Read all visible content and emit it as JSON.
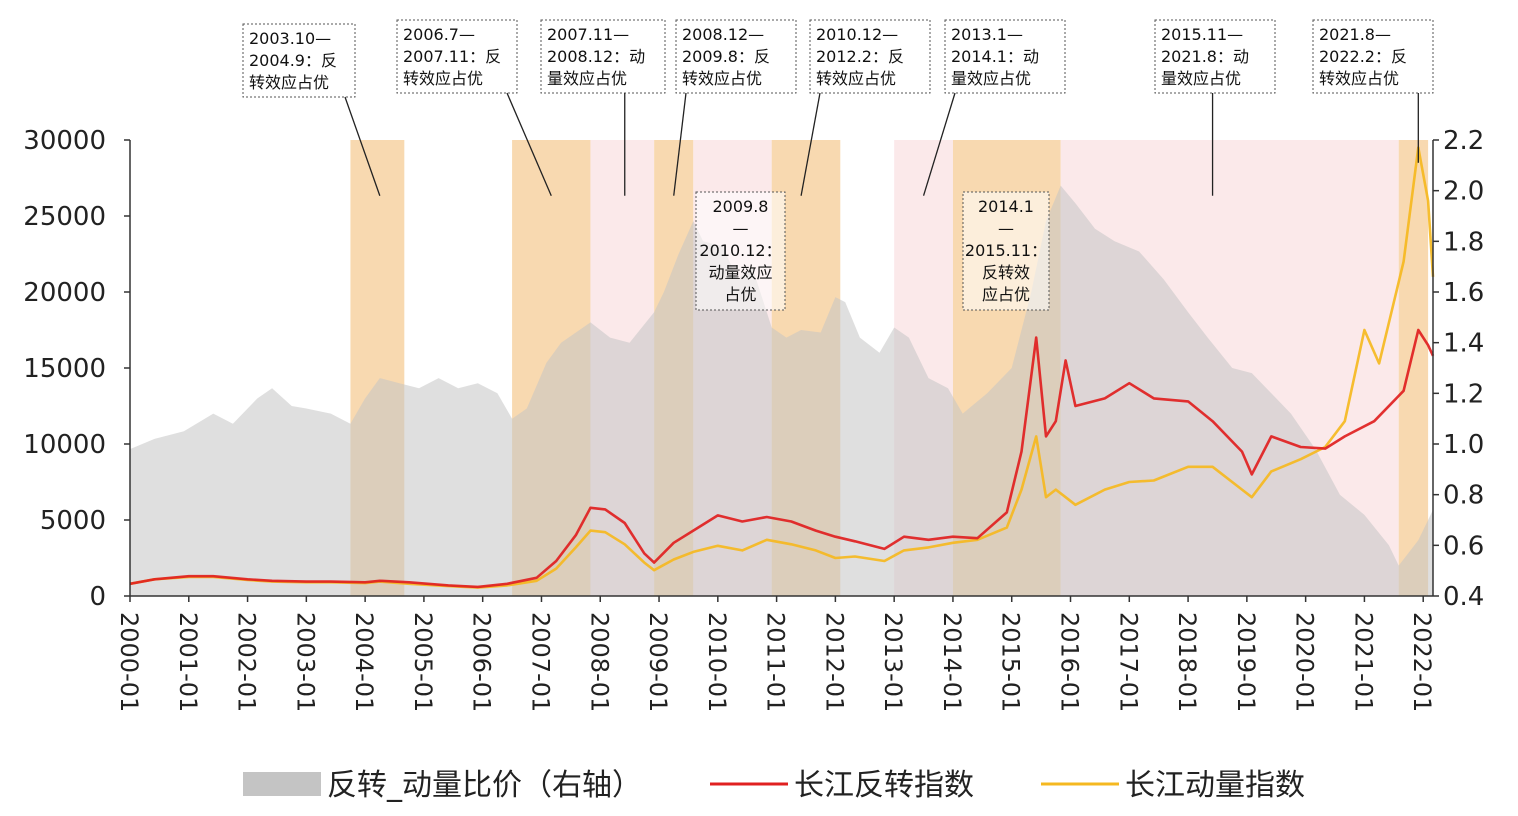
{
  "chart_data": {
    "type": "area+line",
    "title": "",
    "x_range": [
      "2000-01",
      "2022-03"
    ],
    "x_ticks": [
      "2000-01",
      "2001-01",
      "2002-01",
      "2003-01",
      "2004-01",
      "2005-01",
      "2006-01",
      "2007-01",
      "2008-01",
      "2009-01",
      "2010-01",
      "2011-01",
      "2012-01",
      "2013-01",
      "2014-01",
      "2015-01",
      "2016-01",
      "2017-01",
      "2018-01",
      "2019-01",
      "2020-01",
      "2021-01",
      "2022-01"
    ],
    "y_left": {
      "range": [
        0,
        30000
      ],
      "ticks": [
        "0",
        "5000",
        "10000",
        "15000",
        "20000",
        "25000",
        "30000"
      ]
    },
    "y_right": {
      "range": [
        0.4,
        2.2
      ],
      "ticks": [
        "0.4",
        "0.6",
        "0.8",
        "1.0",
        "1.2",
        "1.4",
        "1.6",
        "1.8",
        "2.0",
        "2.2"
      ]
    },
    "legend_position": "bottom",
    "colors": {
      "ratio_area": "#c4c4c4",
      "reversal_line": "#e02020",
      "momentum_line": "#f5b820",
      "reversal_band": "#f8d9b0",
      "momentum_band": "#fbe9ea"
    },
    "series": [
      {
        "name": "反转_动量比价（右轴）",
        "axis": "right",
        "kind": "area",
        "points": [
          [
            "2000-01",
            0.98
          ],
          [
            "2000-06",
            1.02
          ],
          [
            "2000-12",
            1.05
          ],
          [
            "2001-06",
            1.12
          ],
          [
            "2001-10",
            1.08
          ],
          [
            "2002-03",
            1.18
          ],
          [
            "2002-06",
            1.22
          ],
          [
            "2002-10",
            1.15
          ],
          [
            "2003-01",
            1.14
          ],
          [
            "2003-06",
            1.12
          ],
          [
            "2003-10",
            1.08
          ],
          [
            "2004-01",
            1.18
          ],
          [
            "2004-04",
            1.26
          ],
          [
            "2004-08",
            1.24
          ],
          [
            "2004-12",
            1.22
          ],
          [
            "2005-04",
            1.26
          ],
          [
            "2005-08",
            1.22
          ],
          [
            "2005-12",
            1.24
          ],
          [
            "2006-04",
            1.2
          ],
          [
            "2006-07",
            1.1
          ],
          [
            "2006-10",
            1.14
          ],
          [
            "2007-02",
            1.32
          ],
          [
            "2007-05",
            1.4
          ],
          [
            "2007-11",
            1.48
          ],
          [
            "2008-03",
            1.42
          ],
          [
            "2008-07",
            1.4
          ],
          [
            "2008-12",
            1.52
          ],
          [
            "2009-02",
            1.6
          ],
          [
            "2009-05",
            1.75
          ],
          [
            "2009-08",
            1.88
          ],
          [
            "2009-10",
            1.8
          ],
          [
            "2010-02",
            1.78
          ],
          [
            "2010-05",
            1.65
          ],
          [
            "2010-08",
            1.7
          ],
          [
            "2010-12",
            1.46
          ],
          [
            "2011-03",
            1.42
          ],
          [
            "2011-06",
            1.45
          ],
          [
            "2011-10",
            1.44
          ],
          [
            "2012-01",
            1.58
          ],
          [
            "2012-03",
            1.56
          ],
          [
            "2012-06",
            1.42
          ],
          [
            "2012-10",
            1.36
          ],
          [
            "2013-01",
            1.46
          ],
          [
            "2013-04",
            1.42
          ],
          [
            "2013-08",
            1.26
          ],
          [
            "2013-12",
            1.22
          ],
          [
            "2014-03",
            1.12
          ],
          [
            "2014-08",
            1.2
          ],
          [
            "2015-01",
            1.3
          ],
          [
            "2015-05",
            1.6
          ],
          [
            "2015-08",
            1.88
          ],
          [
            "2015-11",
            2.02
          ],
          [
            "2016-02",
            1.95
          ],
          [
            "2016-06",
            1.85
          ],
          [
            "2016-10",
            1.8
          ],
          [
            "2017-03",
            1.76
          ],
          [
            "2017-08",
            1.65
          ],
          [
            "2018-01",
            1.52
          ],
          [
            "2018-05",
            1.42
          ],
          [
            "2018-10",
            1.3
          ],
          [
            "2019-02",
            1.28
          ],
          [
            "2019-06",
            1.2
          ],
          [
            "2019-10",
            1.12
          ],
          [
            "2020-03",
            0.98
          ],
          [
            "2020-08",
            0.8
          ],
          [
            "2021-01",
            0.72
          ],
          [
            "2021-06",
            0.6
          ],
          [
            "2021-08",
            0.52
          ],
          [
            "2021-12",
            0.62
          ],
          [
            "2022-02",
            0.7
          ],
          [
            "2022-03",
            0.74
          ]
        ]
      },
      {
        "name": "长江反转指数",
        "axis": "left",
        "kind": "line",
        "points": [
          [
            "2000-01",
            800
          ],
          [
            "2000-06",
            1100
          ],
          [
            "2001-01",
            1300
          ],
          [
            "2001-06",
            1300
          ],
          [
            "2002-01",
            1100
          ],
          [
            "2002-06",
            1000
          ],
          [
            "2003-01",
            950
          ],
          [
            "2003-06",
            950
          ],
          [
            "2004-01",
            900
          ],
          [
            "2004-04",
            1000
          ],
          [
            "2004-10",
            900
          ],
          [
            "2005-06",
            700
          ],
          [
            "2005-12",
            600
          ],
          [
            "2006-06",
            800
          ],
          [
            "2006-12",
            1200
          ],
          [
            "2007-04",
            2300
          ],
          [
            "2007-08",
            4000
          ],
          [
            "2007-11",
            5800
          ],
          [
            "2008-02",
            5700
          ],
          [
            "2008-06",
            4800
          ],
          [
            "2008-10",
            2800
          ],
          [
            "2008-12",
            2200
          ],
          [
            "2009-04",
            3500
          ],
          [
            "2009-08",
            4300
          ],
          [
            "2010-01",
            5300
          ],
          [
            "2010-06",
            4900
          ],
          [
            "2010-11",
            5200
          ],
          [
            "2011-04",
            4900
          ],
          [
            "2011-09",
            4300
          ],
          [
            "2012-01",
            3900
          ],
          [
            "2012-05",
            3600
          ],
          [
            "2012-11",
            3100
          ],
          [
            "2013-03",
            3900
          ],
          [
            "2013-08",
            3700
          ],
          [
            "2014-01",
            3900
          ],
          [
            "2014-06",
            3800
          ],
          [
            "2014-12",
            5500
          ],
          [
            "2015-03",
            9500
          ],
          [
            "2015-06",
            17000
          ],
          [
            "2015-08",
            10500
          ],
          [
            "2015-10",
            11500
          ],
          [
            "2015-12",
            15500
          ],
          [
            "2016-02",
            12500
          ],
          [
            "2016-08",
            13000
          ],
          [
            "2017-01",
            14000
          ],
          [
            "2017-06",
            13000
          ],
          [
            "2018-01",
            12800
          ],
          [
            "2018-06",
            11500
          ],
          [
            "2018-12",
            9500
          ],
          [
            "2019-02",
            8000
          ],
          [
            "2019-06",
            10500
          ],
          [
            "2019-12",
            9800
          ],
          [
            "2020-05",
            9700
          ],
          [
            "2020-09",
            10500
          ],
          [
            "2021-03",
            11500
          ],
          [
            "2021-09",
            13500
          ],
          [
            "2021-12",
            17500
          ],
          [
            "2022-02",
            16500
          ],
          [
            "2022-03",
            15800
          ]
        ]
      },
      {
        "name": "长江动量指数",
        "axis": "left",
        "kind": "line",
        "points": [
          [
            "2000-01",
            800
          ],
          [
            "2000-06",
            1100
          ],
          [
            "2001-01",
            1250
          ],
          [
            "2001-06",
            1250
          ],
          [
            "2002-01",
            1050
          ],
          [
            "2002-06",
            950
          ],
          [
            "2003-01",
            900
          ],
          [
            "2003-06",
            900
          ],
          [
            "2004-01",
            850
          ],
          [
            "2004-04",
            950
          ],
          [
            "2004-10",
            800
          ],
          [
            "2005-06",
            650
          ],
          [
            "2005-12",
            550
          ],
          [
            "2006-06",
            700
          ],
          [
            "2006-12",
            1000
          ],
          [
            "2007-04",
            1800
          ],
          [
            "2007-08",
            3200
          ],
          [
            "2007-11",
            4300
          ],
          [
            "2008-02",
            4200
          ],
          [
            "2008-06",
            3400
          ],
          [
            "2008-10",
            2200
          ],
          [
            "2008-12",
            1700
          ],
          [
            "2009-04",
            2400
          ],
          [
            "2009-08",
            2900
          ],
          [
            "2010-01",
            3300
          ],
          [
            "2010-06",
            3000
          ],
          [
            "2010-11",
            3700
          ],
          [
            "2011-04",
            3400
          ],
          [
            "2011-09",
            3000
          ],
          [
            "2012-01",
            2500
          ],
          [
            "2012-05",
            2600
          ],
          [
            "2012-11",
            2300
          ],
          [
            "2013-03",
            3000
          ],
          [
            "2013-08",
            3200
          ],
          [
            "2014-01",
            3500
          ],
          [
            "2014-06",
            3700
          ],
          [
            "2014-12",
            4500
          ],
          [
            "2015-03",
            7000
          ],
          [
            "2015-06",
            10500
          ],
          [
            "2015-08",
            6500
          ],
          [
            "2015-10",
            7000
          ],
          [
            "2015-12",
            6500
          ],
          [
            "2016-02",
            6000
          ],
          [
            "2016-08",
            7000
          ],
          [
            "2017-01",
            7500
          ],
          [
            "2017-06",
            7600
          ],
          [
            "2018-01",
            8500
          ],
          [
            "2018-06",
            8500
          ],
          [
            "2018-12",
            7000
          ],
          [
            "2019-02",
            6500
          ],
          [
            "2019-06",
            8200
          ],
          [
            "2019-12",
            9000
          ],
          [
            "2020-05",
            9800
          ],
          [
            "2020-09",
            11500
          ],
          [
            "2021-01",
            17500
          ],
          [
            "2021-04",
            15300
          ],
          [
            "2021-09",
            22000
          ],
          [
            "2021-12",
            29500
          ],
          [
            "2022-02",
            26000
          ],
          [
            "2022-03",
            21000
          ]
        ]
      }
    ],
    "bands": [
      {
        "start": "2003-10",
        "end": "2004-09",
        "type": "reversal",
        "label": "2003.10—2004.9：反转效应占优"
      },
      {
        "start": "2006-07",
        "end": "2007-11",
        "type": "reversal",
        "label": "2006.7—2007.11：反转效应占优"
      },
      {
        "start": "2007-11",
        "end": "2008-12",
        "type": "momentum",
        "label": "2007.11—2008.12：动量效应占优"
      },
      {
        "start": "2008-12",
        "end": "2009-08",
        "type": "reversal",
        "label": "2008.12—2009.8：反转效应占优"
      },
      {
        "start": "2009-08",
        "end": "2010-12",
        "type": "momentum",
        "label": "2009.8—2010.12：动量效应占优"
      },
      {
        "start": "2010-12",
        "end": "2012-02",
        "type": "reversal",
        "label": "2010.12—2012.2：反转效应占优"
      },
      {
        "start": "2013-01",
        "end": "2014-01",
        "type": "momentum",
        "label": "2013.1—2014.1：动量效应占优"
      },
      {
        "start": "2014-01",
        "end": "2015-11",
        "type": "reversal",
        "label": "2014.1—2015.11：反转效应占优"
      },
      {
        "start": "2015-11",
        "end": "2021-08",
        "type": "momentum",
        "label": "2015.11—2021.8：动量效应占优"
      },
      {
        "start": "2021-08",
        "end": "2022-02",
        "type": "reversal",
        "label": "2021.8—2022.2：反转效应占优"
      }
    ],
    "annotations": [
      {
        "lines": [
          "2003.10—",
          "2004.9：反",
          "转效应占优"
        ],
        "target": "2004-04",
        "target_value": 1.98
      },
      {
        "lines": [
          "2006.7—",
          "2007.11：反",
          "转效应占优"
        ],
        "target": "2007-03",
        "target_value": 1.98
      },
      {
        "lines": [
          "2007.11—",
          "2008.12：动",
          "量效应占优"
        ],
        "target": "2008-06",
        "target_value": 1.98
      },
      {
        "lines": [
          "2008.12—",
          "2009.8：反",
          "转效应占优"
        ],
        "target": "2009-04",
        "target_value": 1.98
      },
      {
        "lines": [
          "2010.12—",
          "2012.2：反",
          "转效应占优"
        ],
        "target": "2011-06",
        "target_value": 1.98
      },
      {
        "lines": [
          "2013.1—",
          "2014.1：动",
          "量效应占优"
        ],
        "target": "2013-07",
        "target_value": 1.98
      },
      {
        "lines": [
          "2015.11—",
          "2021.8：动",
          "量效应占优"
        ],
        "target": "2018-06",
        "target_value": 1.98
      },
      {
        "lines": [
          "2021.8—",
          "2022.2：反",
          "转效应占优"
        ],
        "target": "2021-12",
        "target_value": 2.11
      },
      {
        "lines": [
          "2009.8",
          "—",
          "2010.12：",
          "动量效应",
          "占优"
        ],
        "target": "",
        "target_value": null
      },
      {
        "lines": [
          "2014.1",
          "—",
          "2015.11：",
          "反转效",
          "应占优"
        ],
        "target": "",
        "target_value": null
      }
    ],
    "legend": [
      {
        "label": "反转_动量比价（右轴）",
        "kind": "area"
      },
      {
        "label": "长江反转指数",
        "kind": "line"
      },
      {
        "label": "长江动量指数",
        "kind": "line"
      }
    ]
  }
}
